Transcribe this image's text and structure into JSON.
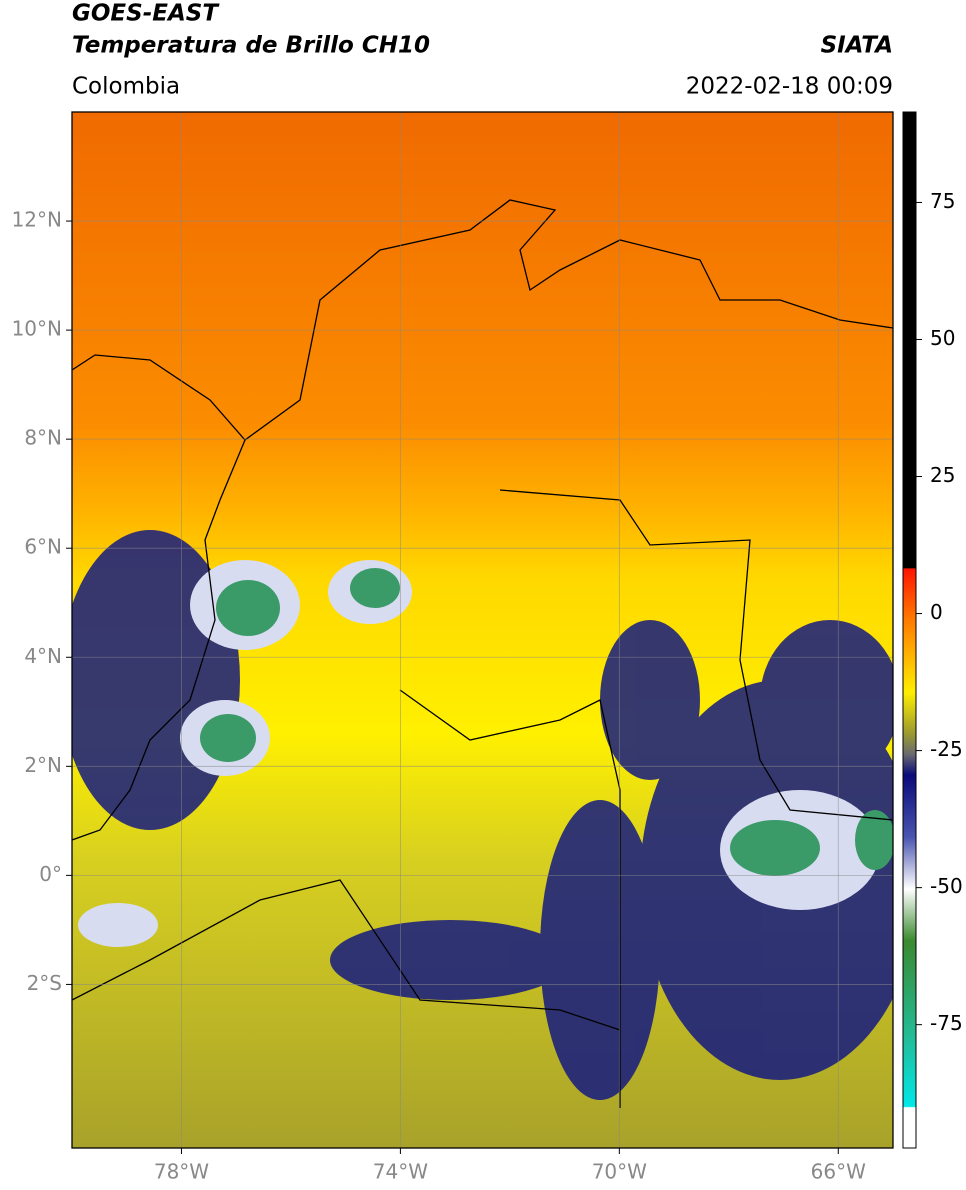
{
  "header": {
    "satellite": "GOES-EAST",
    "product": "Temperatura de Brillo CH10",
    "agency": "SIATA",
    "region": "Colombia",
    "datetime": "2022-02-18 00:09"
  },
  "map": {
    "lonlim": [
      -80,
      -65
    ],
    "latlim": [
      -5,
      14
    ],
    "grid": true,
    "lon_ticks": [
      {
        "value": -78,
        "label": "78°W"
      },
      {
        "value": -74,
        "label": "74°W"
      },
      {
        "value": -70,
        "label": "70°W"
      },
      {
        "value": -66,
        "label": "66°W"
      }
    ],
    "lat_ticks": [
      {
        "value": 12,
        "label": "12°N"
      },
      {
        "value": 10,
        "label": "10°N"
      },
      {
        "value": 8,
        "label": "8°N"
      },
      {
        "value": 6,
        "label": "6°N"
      },
      {
        "value": 4,
        "label": "4°N"
      },
      {
        "value": 2,
        "label": "2°N"
      },
      {
        "value": 0,
        "label": "0°"
      },
      {
        "value": -2,
        "label": "2°S"
      }
    ]
  },
  "colorbar": {
    "lim": [
      -97.5,
      91.5
    ],
    "ticks": [
      75,
      50,
      25,
      0,
      -25,
      -50,
      -75
    ]
  }
}
